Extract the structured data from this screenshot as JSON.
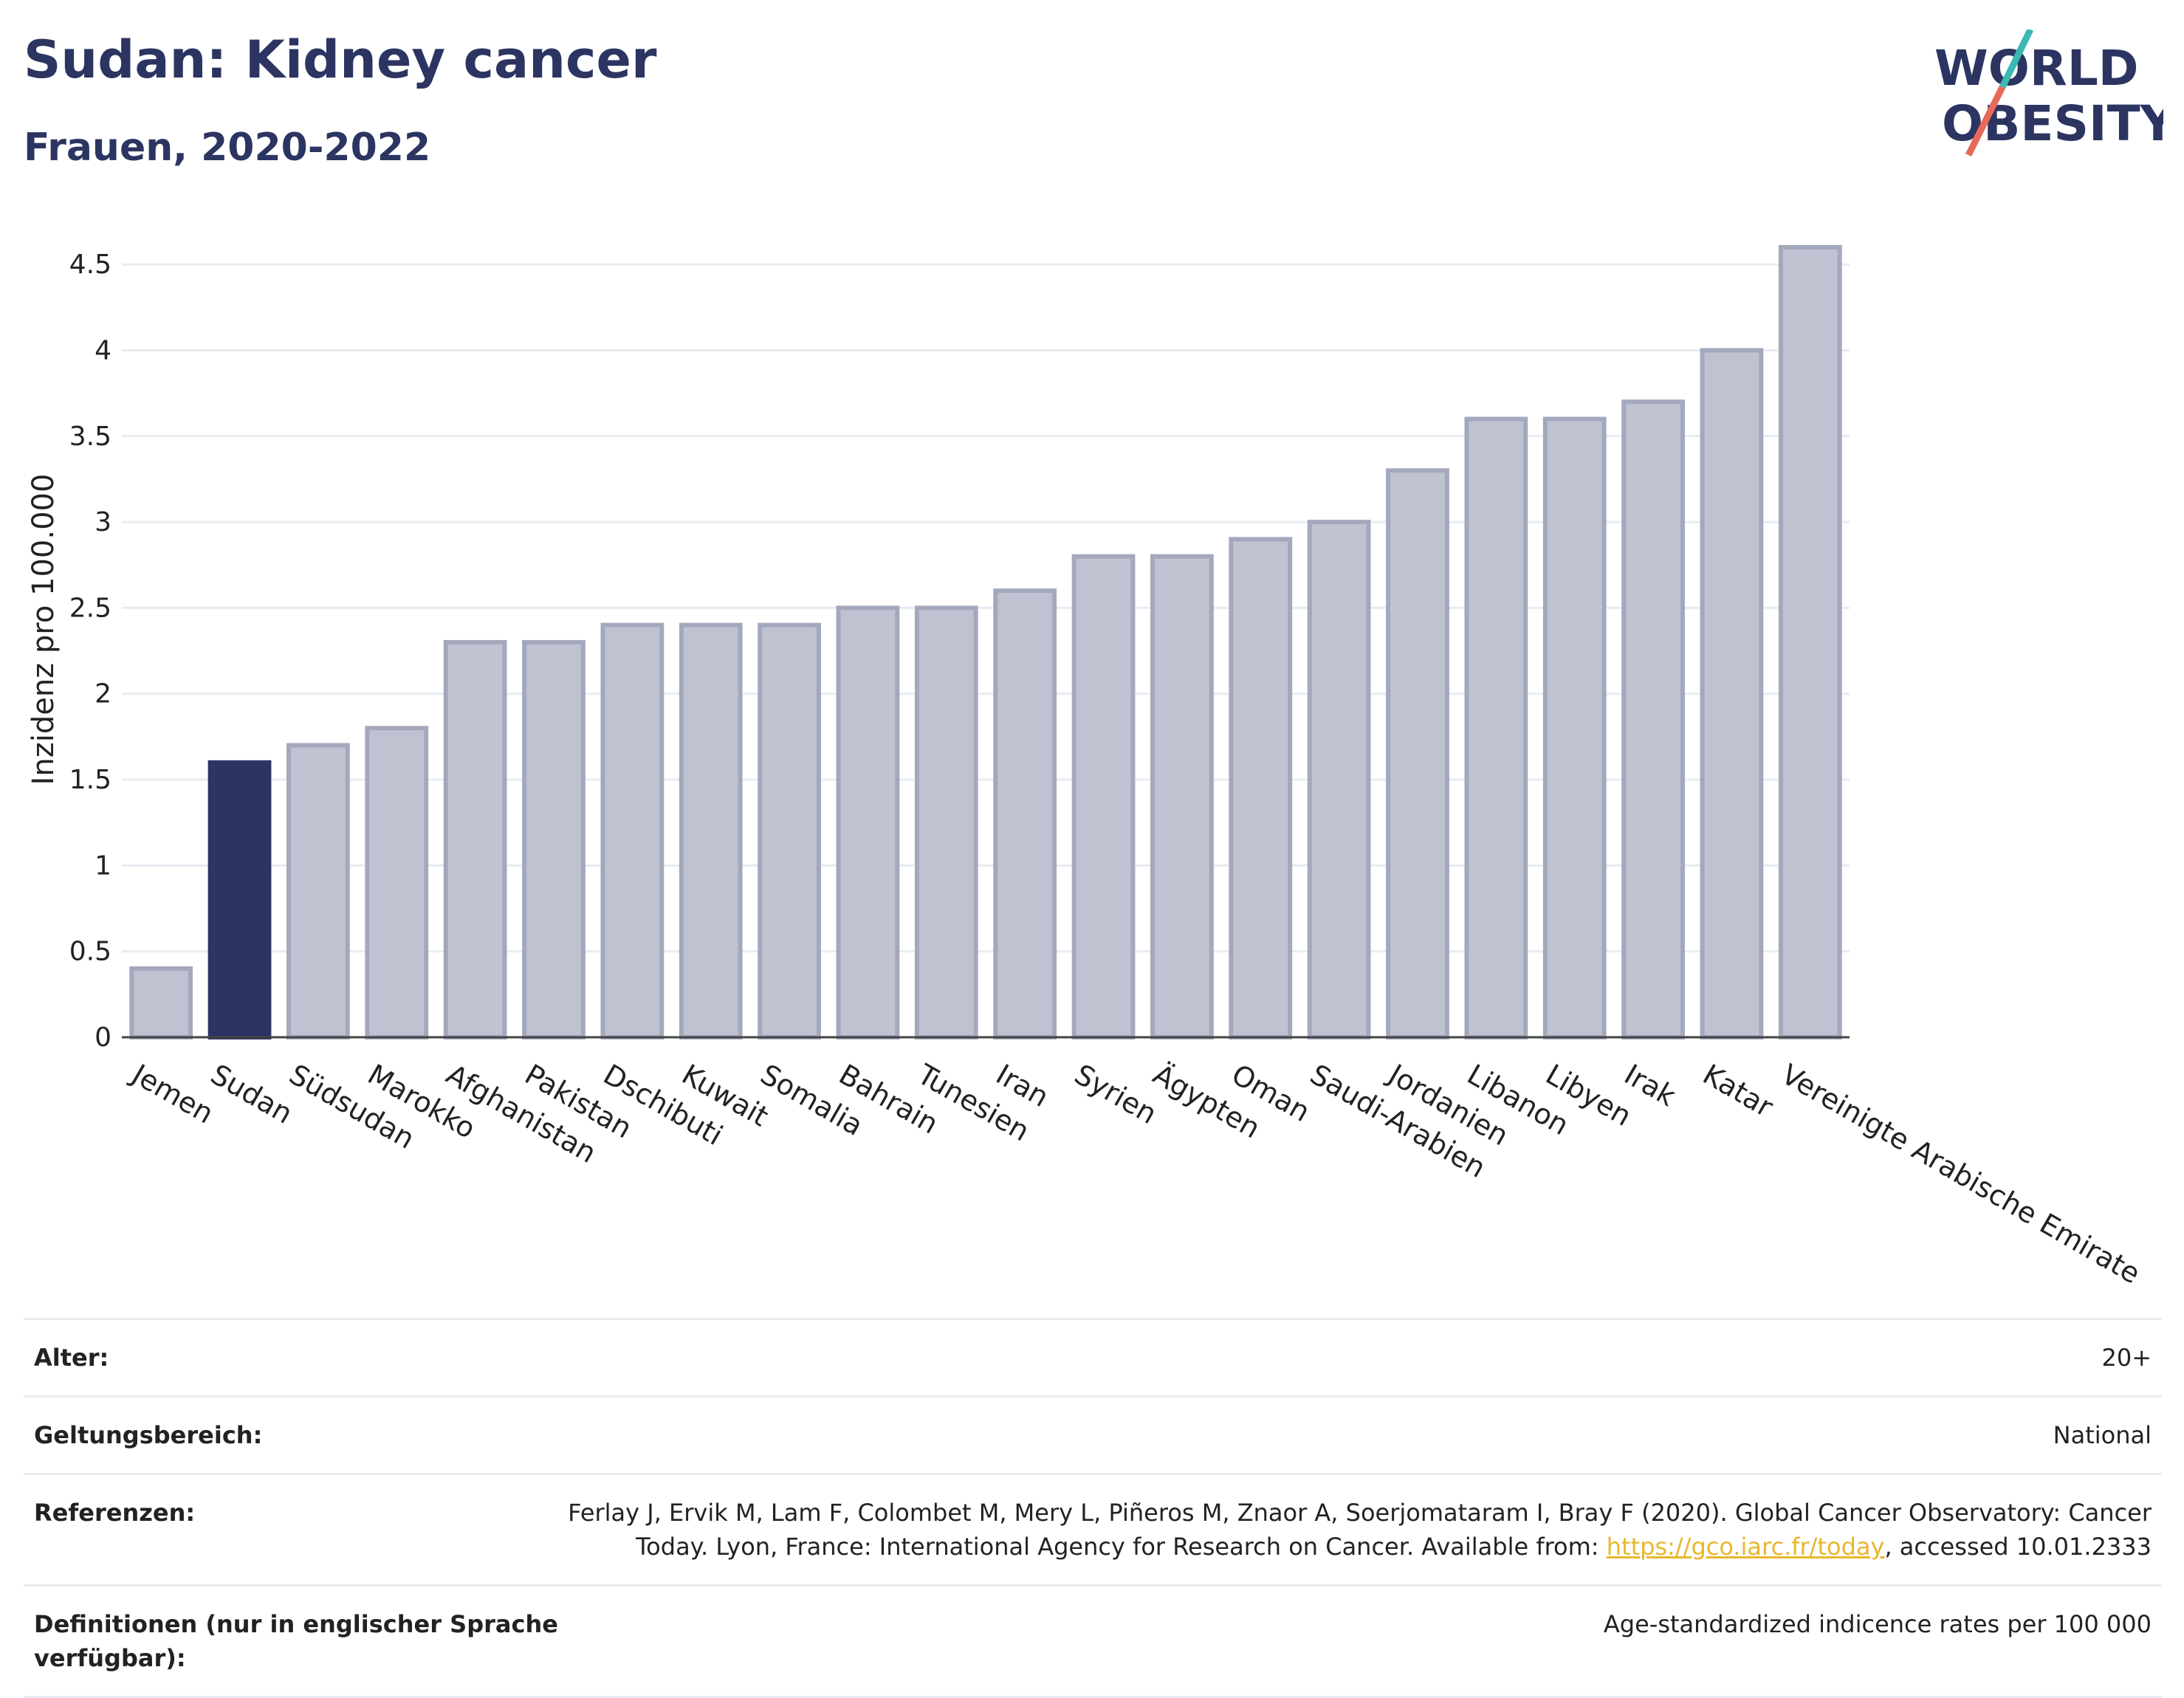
{
  "header": {
    "title": "Sudan: Kidney cancer",
    "subtitle": "Frauen, 2020-2022",
    "logo_line1": "WORLD",
    "logo_line2": "OBESITY"
  },
  "colors": {
    "highlight": "#2c3561",
    "bar": "#bfc2d0",
    "bar_stroke": "#a4a8bd",
    "grid": "#e8ebf1",
    "logo_teal": "#3bb8b4",
    "logo_coral": "#e66a5a"
  },
  "chart_data": {
    "type": "bar",
    "title": "Sudan: Kidney cancer",
    "subtitle": "Frauen, 2020-2022",
    "xlabel": "",
    "ylabel": "Inzidenz pro 100.000",
    "ylim": [
      0,
      4.75
    ],
    "yticks": [
      0,
      0.5,
      1,
      1.5,
      2,
      2.5,
      3,
      3.5,
      4,
      4.5
    ],
    "ytick_labels": [
      "0",
      "0.5",
      "1",
      "1.5",
      "2",
      "2.5",
      "3",
      "3.5",
      "4",
      "4.5"
    ],
    "grid": true,
    "highlight_category": "Sudan",
    "categories": [
      "Jemen",
      "Sudan",
      "Südsudan",
      "Marokko",
      "Afghanistan",
      "Pakistan",
      "Dschibuti",
      "Kuwait",
      "Somalia",
      "Bahrain",
      "Tunesien",
      "Iran",
      "Syrien",
      "Ägypten",
      "Oman",
      "Saudi-Arabien",
      "Jordanien",
      "Libanon",
      "Libyen",
      "Irak",
      "Katar",
      "Vereinigte Arabische Emirate"
    ],
    "values": [
      0.4,
      1.6,
      1.7,
      1.8,
      2.3,
      2.3,
      2.4,
      2.4,
      2.4,
      2.5,
      2.5,
      2.6,
      2.8,
      2.8,
      2.9,
      3.0,
      3.3,
      3.6,
      3.6,
      3.7,
      4.0,
      4.6
    ]
  },
  "meta": {
    "rows": [
      {
        "label": "Alter:",
        "value": "20+"
      },
      {
        "label": "Geltungsbereich:",
        "value": "National"
      },
      {
        "label": "Referenzen:",
        "value_pre": "Ferlay J, Ervik M, Lam F, Colombet M, Mery L, Piñeros M, Znaor A, Soerjomataram I, Bray F (2020). Global Cancer Observatory: Cancer Today. Lyon, France: International Agency for Research on Cancer. Available from: ",
        "link": "https://gco.iarc.fr/today",
        "value_post": ", accessed 10.01.2333"
      },
      {
        "label": "Definitionen (nur in englischer Sprache verfügbar):",
        "value": "Age-standardized indicence rates per 100 000"
      }
    ]
  }
}
